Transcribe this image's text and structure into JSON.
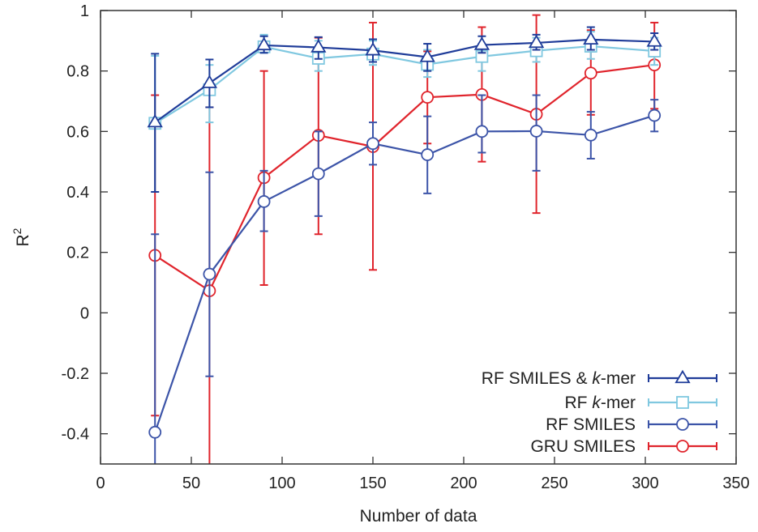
{
  "chart_data": {
    "type": "line",
    "title": "",
    "xlabel": "Number of data",
    "ylabel": "R",
    "ylabel_sup": "2",
    "xlim": [
      0,
      350
    ],
    "ylim": [
      -0.5,
      1
    ],
    "xticks": [
      0,
      50,
      100,
      150,
      200,
      250,
      300,
      350
    ],
    "xtick_labels": [
      "0",
      "50",
      "100",
      "150",
      "200",
      "250",
      "300",
      "350"
    ],
    "yticks": [
      -0.4,
      -0.2,
      0,
      0.2,
      0.4,
      0.6,
      0.8,
      1
    ],
    "ytick_labels": [
      "-0.4",
      "-0.2",
      "0",
      "0.2",
      "0.4",
      "0.6",
      "0.8",
      "1"
    ],
    "grid": false,
    "legend_position": "bottom-right",
    "series": [
      {
        "name": "RF SMILES & k-mer",
        "name_parts": [
          {
            "t": "RF SMILES & "
          },
          {
            "t": "k",
            "i": true
          },
          {
            "t": "-mer"
          }
        ],
        "color": "#1f3c99",
        "marker": "triangle",
        "x": [
          30,
          60,
          90,
          120,
          150,
          180,
          210,
          240,
          270,
          305
        ],
        "y": [
          0.63,
          0.76,
          0.885,
          0.878,
          0.868,
          0.846,
          0.886,
          0.893,
          0.904,
          0.897
        ],
        "err_low": [
          0.4,
          0.68,
          0.86,
          0.84,
          0.83,
          0.8,
          0.86,
          0.87,
          0.87,
          0.87
        ],
        "err_high": [
          0.857,
          0.838,
          0.915,
          0.912,
          0.905,
          0.89,
          0.915,
          0.92,
          0.945,
          0.925
        ]
      },
      {
        "name": "RF k-mer",
        "name_parts": [
          {
            "t": "RF "
          },
          {
            "t": "k",
            "i": true
          },
          {
            "t": "-mer"
          }
        ],
        "color": "#80c8e0",
        "marker": "square",
        "x": [
          30,
          60,
          90,
          120,
          150,
          180,
          210,
          240,
          270,
          305
        ],
        "y": [
          0.627,
          0.738,
          0.88,
          0.842,
          0.856,
          0.822,
          0.848,
          0.867,
          0.882,
          0.866
        ],
        "err_low": [
          0.4,
          0.63,
          0.86,
          0.8,
          0.82,
          0.78,
          0.8,
          0.83,
          0.84,
          0.82
        ],
        "err_high": [
          0.85,
          0.82,
          0.92,
          0.9,
          0.9,
          0.87,
          0.89,
          0.91,
          0.93,
          0.91
        ]
      },
      {
        "name": "RF SMILES",
        "name_parts": [
          {
            "t": "RF SMILES"
          }
        ],
        "color": "#3c54a8",
        "marker": "circle",
        "x": [
          30,
          60,
          90,
          120,
          150,
          180,
          210,
          240,
          270,
          305
        ],
        "y": [
          -0.395,
          0.128,
          0.368,
          0.46,
          0.56,
          0.523,
          0.6,
          0.601,
          0.588,
          0.653
        ],
        "err_low": [
          -0.5,
          -0.21,
          0.27,
          0.32,
          0.49,
          0.395,
          0.53,
          0.47,
          0.51,
          0.6
        ],
        "err_high": [
          0.26,
          0.465,
          0.47,
          0.6,
          0.63,
          0.65,
          0.72,
          0.72,
          0.665,
          0.705
        ]
      },
      {
        "name": "GRU SMILES",
        "name_parts": [
          {
            "t": "GRU SMILES"
          }
        ],
        "color": "#e0242c",
        "marker": "circle",
        "x": [
          30,
          60,
          90,
          120,
          150,
          180,
          210,
          240,
          270,
          305
        ],
        "y": [
          0.19,
          0.073,
          0.447,
          0.587,
          0.55,
          0.713,
          0.722,
          0.657,
          0.793,
          0.82
        ],
        "err_low": [
          -0.34,
          -0.5,
          0.092,
          0.26,
          0.142,
          0.56,
          0.5,
          0.33,
          0.655,
          0.675
        ],
        "err_high": [
          0.72,
          0.68,
          0.8,
          0.91,
          0.96,
          0.865,
          0.945,
          0.985,
          0.935,
          0.96
        ]
      }
    ]
  }
}
